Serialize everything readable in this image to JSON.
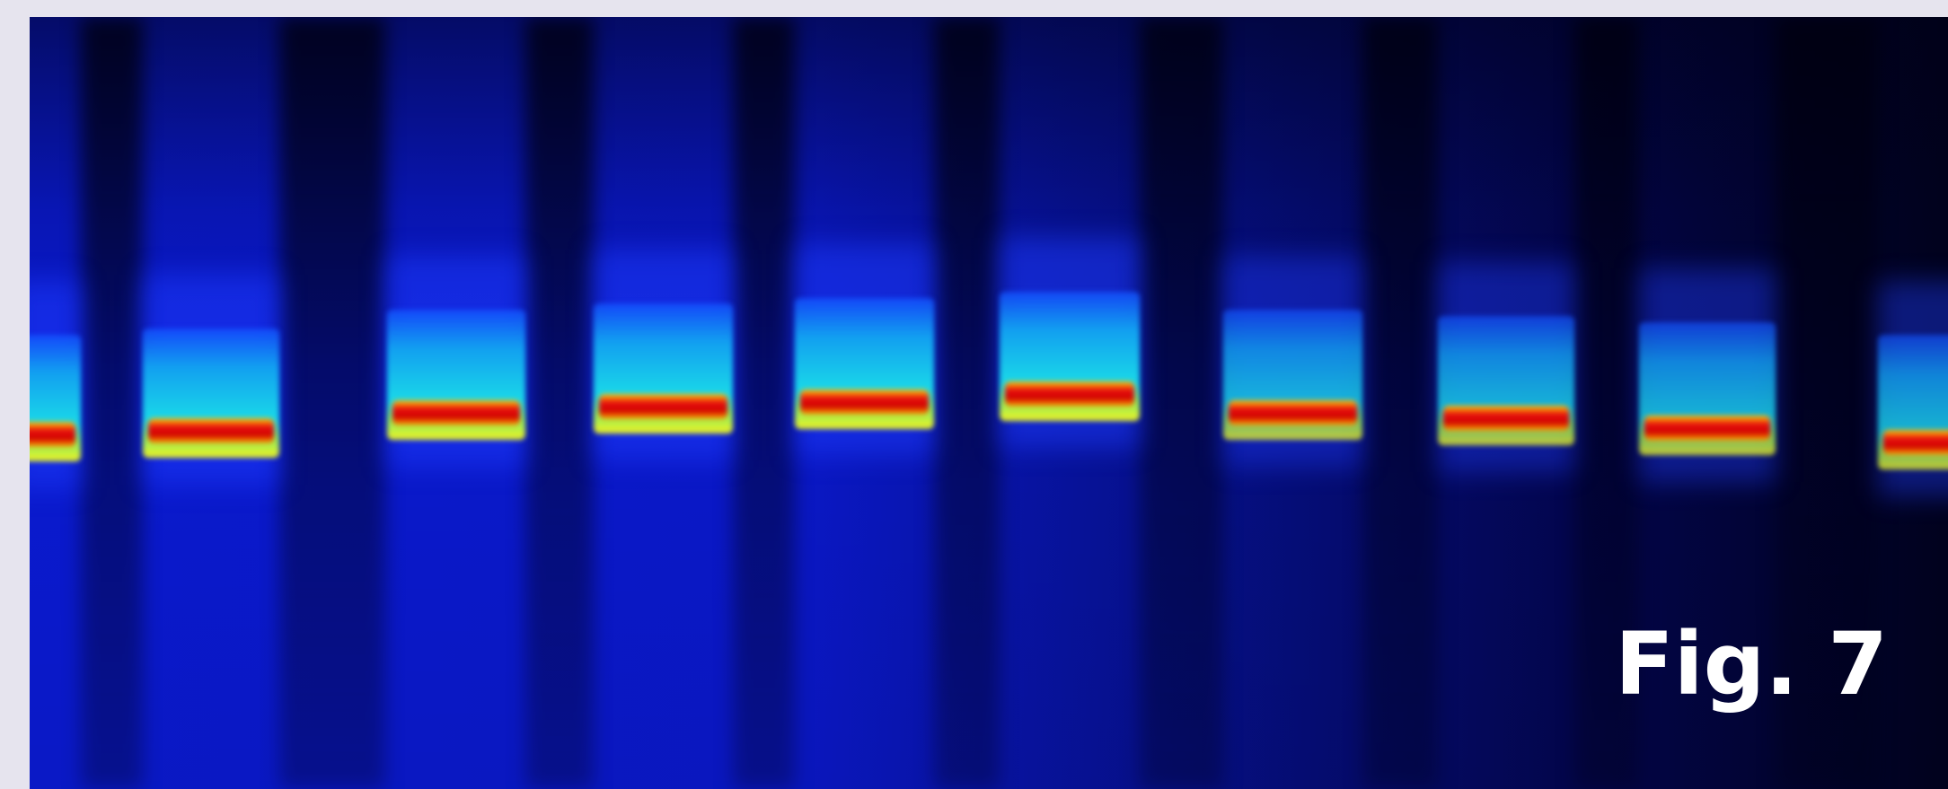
{
  "figure": {
    "label": "Fig. 7"
  }
}
